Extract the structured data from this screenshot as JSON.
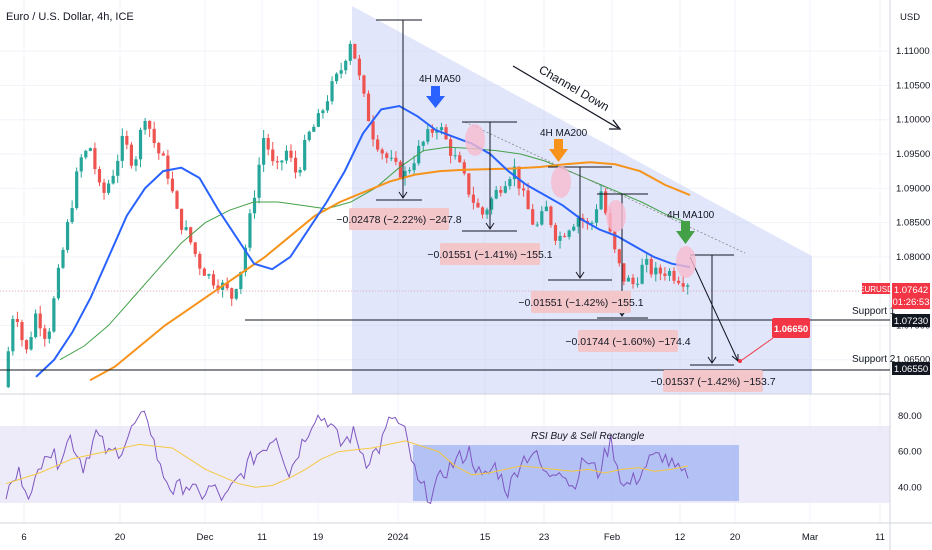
{
  "header": {
    "title": "Euro / U.S. Dollar, 4h, ICE",
    "currency": "USD"
  },
  "colors": {
    "candle_up": "#26a69a",
    "candle_down": "#ef5350",
    "ma50": "#2962ff",
    "ma100": "#43a047",
    "ma200": "#f7931a",
    "channel": "#bcc8f5",
    "rsi": "#7e57c2",
    "rsi_ma": "#f5c842",
    "rsi_band": "#e6e3f7",
    "rsi_rect": "#9fb3f2",
    "label_red": "#f23645"
  },
  "chart_data": {
    "type": "candlestick",
    "title": "Euro / U.S. Dollar, 4h, ICE",
    "ylim": [
      1.06,
      1.116
    ],
    "x_tick_labels": [
      "6",
      "20",
      "Dec",
      "11",
      "19",
      "2024",
      "15",
      "23",
      "Feb",
      "12",
      "20",
      "Mar",
      "11"
    ],
    "y_tick_labels": [
      "1.11000",
      "1.10500",
      "1.10000",
      "1.09500",
      "1.09000",
      "1.08500",
      "1.08000",
      "1.07500",
      "1.07000",
      "1.06500"
    ],
    "symbol_label": "EURUSD",
    "last_price": "1.07642",
    "countdown": "01:26:53",
    "price_path": [
      1.061,
      1.0735,
      1.0655,
      1.072,
      1.068,
      1.077,
      1.0855,
      1.094,
      1.096,
      1.0885,
      1.092,
      1.097,
      1.0935,
      1.101,
      1.096,
      1.093,
      1.086,
      1.083,
      1.079,
      1.077,
      1.076,
      1.0742,
      1.079,
      1.0885,
      1.098,
      1.092,
      1.0955,
      1.092,
      1.0975,
      1.1,
      1.104,
      1.107,
      1.112,
      1.104,
      1.098,
      1.095,
      1.093,
      1.092,
      1.095,
      1.0975,
      1.0995,
      1.096,
      1.093,
      1.089,
      1.086,
      1.0885,
      1.091,
      1.093,
      1.088,
      1.084,
      1.087,
      1.0825,
      1.0845,
      1.086,
      1.084,
      1.0898,
      1.082,
      1.077,
      1.076,
      1.079,
      1.0775,
      1.078,
      1.0772,
      1.0764
    ],
    "series": [
      {
        "name": "4H MA50",
        "values": [
          1.0625,
          1.065,
          1.069,
          1.074,
          1.08,
          1.086,
          1.09,
          1.0925,
          1.093,
          1.0915,
          1.087,
          1.083,
          1.079,
          1.0782,
          1.08,
          1.084,
          1.088,
          1.0925,
          1.098,
          1.1015,
          1.102,
          1.1005,
          1.0985,
          1.0975,
          1.0965,
          1.095,
          1.0925,
          1.0905,
          1.089,
          1.0875,
          1.0855,
          1.084,
          1.083,
          1.0815,
          1.08,
          1.079,
          1.0785
        ]
      },
      {
        "name": "4H MA100",
        "values": [
          1.065,
          1.067,
          1.07,
          1.074,
          1.078,
          1.082,
          1.085,
          1.0868,
          1.088,
          1.088,
          1.0875,
          1.087,
          1.088,
          1.09,
          1.093,
          1.0955,
          1.096,
          1.0958,
          1.0955,
          1.095,
          1.094,
          1.0925,
          1.091,
          1.0895,
          1.088,
          1.0862,
          1.0848
        ]
      },
      {
        "name": "4H MA200",
        "values": [
          1.062,
          1.064,
          1.067,
          1.07,
          1.0725,
          1.075,
          1.0775,
          1.08,
          1.083,
          1.086,
          1.088,
          1.0895,
          1.091,
          1.092,
          1.0925,
          1.0927,
          1.0928,
          1.0929,
          1.0931,
          1.0935,
          1.0938,
          1.0935,
          1.0925,
          1.0905,
          1.089
        ]
      },
      {
        "name": "RSI",
        "values": [
          36,
          48,
          35,
          62,
          55,
          68,
          52,
          70,
          58,
          62,
          75,
          80,
          50,
          38,
          42,
          35,
          40,
          33,
          44,
          55,
          62,
          70,
          48,
          65,
          80,
          78,
          64,
          70,
          55,
          62,
          80,
          70,
          42,
          35,
          48,
          55,
          60,
          44,
          52,
          38,
          55,
          60,
          46,
          52,
          40,
          56,
          48,
          66,
          40,
          45,
          55,
          58,
          50,
          45
        ]
      },
      {
        "name": "RSI MA",
        "values": [
          42,
          45,
          48,
          52,
          56,
          58,
          60,
          62,
          64,
          63,
          62,
          56,
          50,
          46,
          42,
          40,
          41,
          45,
          50,
          56,
          60,
          61,
          62,
          64,
          66,
          63,
          60,
          52,
          47,
          48,
          50,
          52,
          51,
          50,
          49,
          50,
          48,
          50,
          51,
          49,
          50,
          52
        ]
      }
    ],
    "rsi_ticks": [
      "80.00",
      "60.00",
      "40.00"
    ],
    "levels": [
      {
        "name": "Support 1",
        "value": 1.0723,
        "label": "1.07230"
      },
      {
        "name": "Support 2",
        "value": 1.0655,
        "label": "1.06550"
      }
    ],
    "target": {
      "value": 1.0665,
      "label": "1.06650"
    },
    "measurements": [
      "−0.02478 (−2.22%) −247.8",
      "−0.01551 (−1.41%) −155.1",
      "−0.01551 (−1.42%) −155.1",
      "−0.01744 (−1.60%) −174.4",
      "−0.01537 (−1.42%) −153.7"
    ],
    "annotations": {
      "ma50": "4H MA50",
      "ma200": "4H MA200",
      "ma100": "4H MA100",
      "channel": "Channel Down",
      "rsi_rect": "RSI Buy & Sell Rectangle"
    }
  }
}
